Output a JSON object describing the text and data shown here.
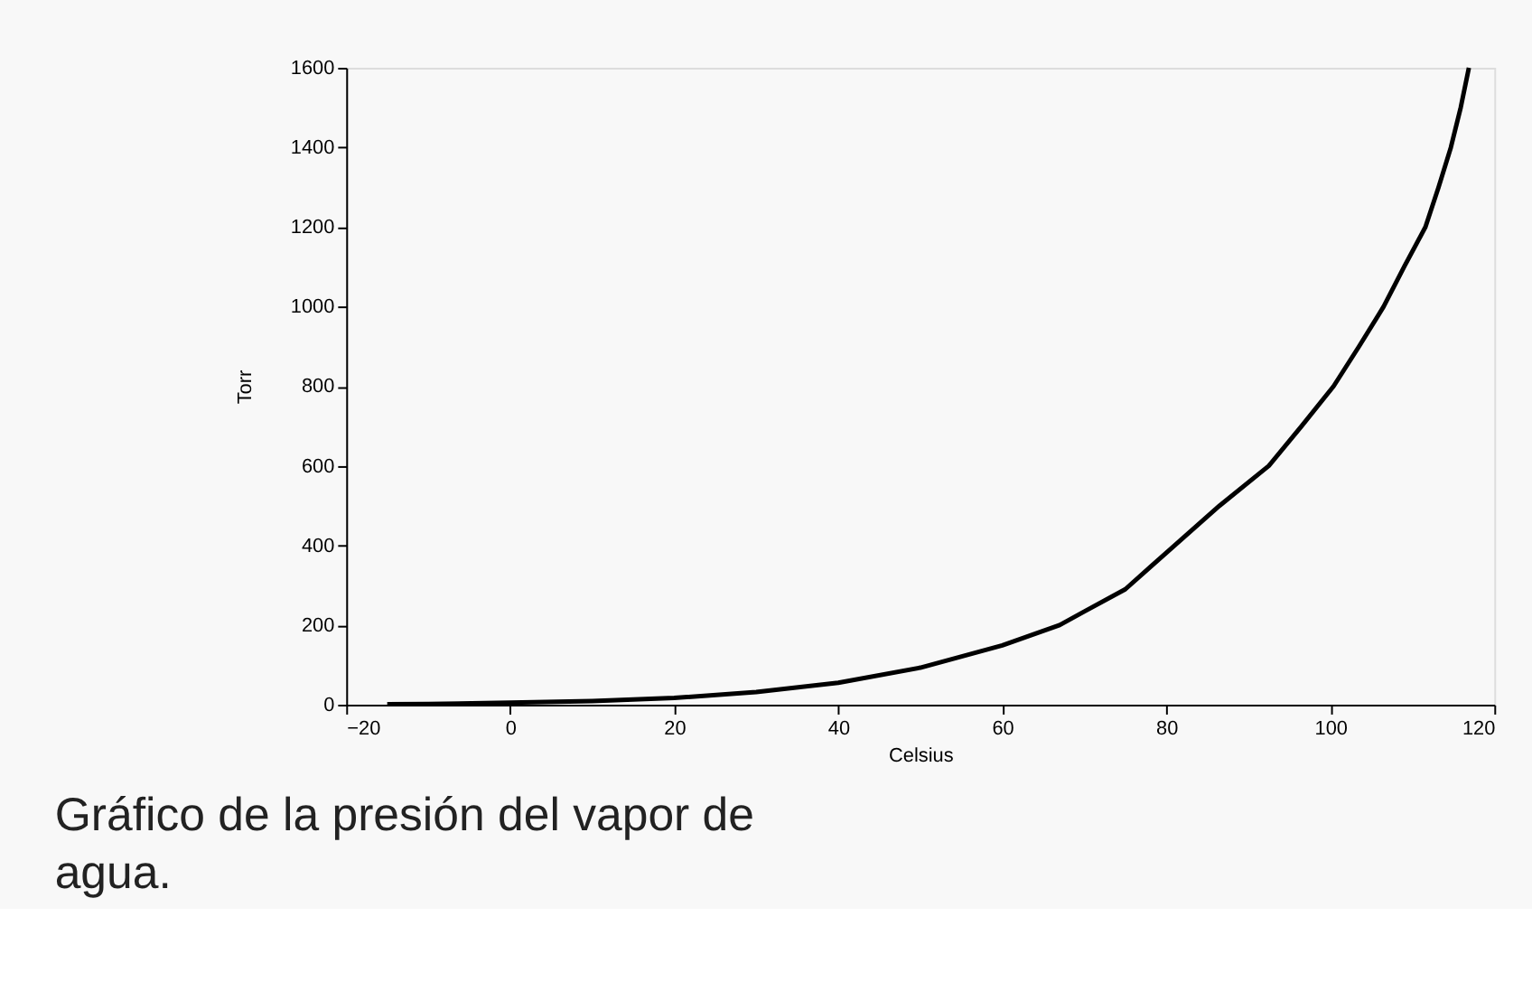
{
  "chart_data": {
    "type": "line",
    "xlabel": "Celsius",
    "ylabel": "Torr",
    "annotations": [
      "Gráfico de la presión del vapor de agua."
    ],
    "x": [
      -15,
      -10,
      0,
      10,
      20,
      30,
      40,
      50,
      60,
      67,
      70,
      75,
      81,
      86.5,
      92.5,
      96.5,
      100.4,
      103.5,
      106.5,
      109,
      111.6,
      113.2,
      114.7,
      115.9,
      116.9
    ],
    "series": [
      {
        "color": "#000000",
        "values": [
          1,
          2,
          5,
          9,
          17,
          32,
          55,
          93,
          149,
          200,
          234,
          290,
          400,
          500,
          600,
          700,
          800,
          900,
          1000,
          1100,
          1200,
          1300,
          1400,
          1500,
          1600
        ]
      }
    ],
    "xlim": [
      -20,
      120
    ],
    "xticks": [
      -20,
      0,
      20,
      40,
      60,
      80,
      100,
      120
    ],
    "ylim": [
      0,
      1600
    ],
    "yticks": [
      0,
      200,
      400,
      600,
      800,
      1000,
      1200,
      1400,
      1600
    ],
    "grid": false,
    "marker": "none",
    "line_style": "solid"
  }
}
